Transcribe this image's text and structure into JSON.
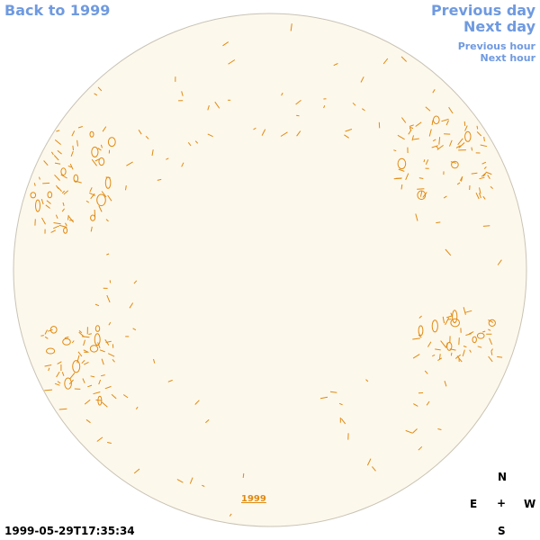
{
  "nav": {
    "back": "Back to 1999",
    "previous_day": "Previous day",
    "next_day": "Next day",
    "previous_hour": "Previous hour",
    "next_hour": "Next hour"
  },
  "compass": {
    "north": "N",
    "east": "E",
    "center": "+",
    "west": "W",
    "south": "S"
  },
  "timestamp": "1999-05-29T17:35:34",
  "year_link": "1999",
  "colors": {
    "disk_fill": "#fdf8ec",
    "disk_stroke": "#c9c3b6",
    "contour": "#e08a10",
    "nav": "#6f9ae0"
  }
}
